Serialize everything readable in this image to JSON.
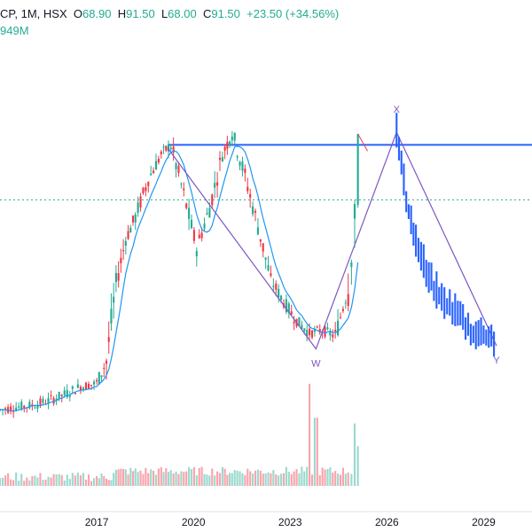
{
  "legend": {
    "name": "CP, 1M, HSX",
    "open_label": "O",
    "open": "68.90",
    "high_label": "H",
    "high": "91.50",
    "low_label": "L",
    "low": "68.00",
    "close_label": "C",
    "close": "91.50",
    "change": "+23.50 (+34.56%)",
    "volume": "949M"
  },
  "colors": {
    "up": "#22ab94",
    "down": "#f23645",
    "ma": "#2196f3",
    "pattern": "#7e57c2",
    "projection": "#2962ff",
    "arrow": "#f23645"
  },
  "chart_data": {
    "type": "candlestick",
    "x_axis": {
      "ticks": [
        "2017",
        "2020",
        "2023",
        "2026",
        "2029"
      ],
      "range": [
        2014,
        2030
      ]
    },
    "y_range": [
      0,
      120
    ],
    "price_labels_visible": false,
    "ohlc_approx": [
      [
        2014.0,
        3.0,
        4.0,
        1.5,
        3.5
      ],
      [
        2014.5,
        3.5,
        5.0,
        3.0,
        4.5
      ],
      [
        2015.0,
        4.5,
        6.0,
        4.0,
        5.0
      ],
      [
        2015.5,
        5.0,
        7.0,
        4.5,
        6.5
      ],
      [
        2016.0,
        6.5,
        9.0,
        6.0,
        8.5
      ],
      [
        2016.5,
        8.5,
        12.0,
        8.0,
        11.0
      ],
      [
        2017.0,
        11.0,
        13.0,
        10.0,
        12.0
      ],
      [
        2017.3,
        12.0,
        20.0,
        12.0,
        19.0
      ],
      [
        2017.6,
        19.0,
        45.0,
        19.0,
        44.0
      ],
      [
        2017.9,
        44.0,
        60.0,
        40.0,
        58.0
      ],
      [
        2018.2,
        58.0,
        72.0,
        52.0,
        65.0
      ],
      [
        2018.6,
        65.0,
        80.0,
        60.0,
        77.0
      ],
      [
        2019.0,
        77.0,
        88.0,
        70.0,
        85.0
      ],
      [
        2019.3,
        85.0,
        92.0,
        78.0,
        88.0
      ],
      [
        2019.7,
        88.0,
        90.0,
        70.0,
        72.0
      ],
      [
        2020.1,
        72.0,
        78.0,
        45.0,
        55.0
      ],
      [
        2020.5,
        55.0,
        70.0,
        50.0,
        68.0
      ],
      [
        2020.9,
        68.0,
        88.0,
        65.0,
        85.0
      ],
      [
        2021.2,
        85.0,
        110.0,
        80.0,
        92.0
      ],
      [
        2021.6,
        92.0,
        98.0,
        75.0,
        78.0
      ],
      [
        2022.0,
        78.0,
        82.0,
        60.0,
        62.0
      ],
      [
        2022.4,
        62.0,
        66.0,
        42.0,
        45.0
      ],
      [
        2022.8,
        45.0,
        50.0,
        35.0,
        38.0
      ],
      [
        2023.2,
        38.0,
        42.0,
        30.0,
        32.0
      ],
      [
        2023.6,
        32.0,
        36.0,
        25.0,
        28.0
      ],
      [
        2024.0,
        28.0,
        32.0,
        25.0,
        29.0
      ],
      [
        2024.4,
        29.0,
        30.0,
        26.0,
        27.0
      ],
      [
        2024.8,
        27.0,
        45.0,
        26.0,
        43.0
      ],
      [
        2025.0,
        43.0,
        70.0,
        42.0,
        68.9
      ],
      [
        2025.1,
        68.9,
        91.5,
        68.0,
        91.5
      ]
    ],
    "pattern_points": [
      {
        "label": "",
        "x": 2019.2,
        "y": 87.0
      },
      {
        "label": "W",
        "x": 2023.8,
        "y": 23.0
      },
      {
        "label": "X",
        "x": 2026.3,
        "y": 92.0
      },
      {
        "label": "Y",
        "x": 2029.4,
        "y": 24.0
      }
    ],
    "resistance_level": 88.0,
    "current_price_line": 70.5,
    "projection_steps": [
      [
        2026.3,
        92.0
      ],
      [
        2026.6,
        70.0
      ],
      [
        2026.9,
        57.0
      ],
      [
        2027.3,
        45.0
      ],
      [
        2027.7,
        38.0
      ],
      [
        2028.2,
        34.0
      ],
      [
        2028.6,
        28.0
      ],
      [
        2029.0,
        27.0
      ],
      [
        2029.4,
        25.0
      ]
    ],
    "volume_tall_spikes": [
      [
        2023.6,
        0.9
      ],
      [
        2025.0,
        0.55
      ],
      [
        2025.1,
        0.35
      ],
      [
        2023.8,
        0.6
      ]
    ]
  }
}
